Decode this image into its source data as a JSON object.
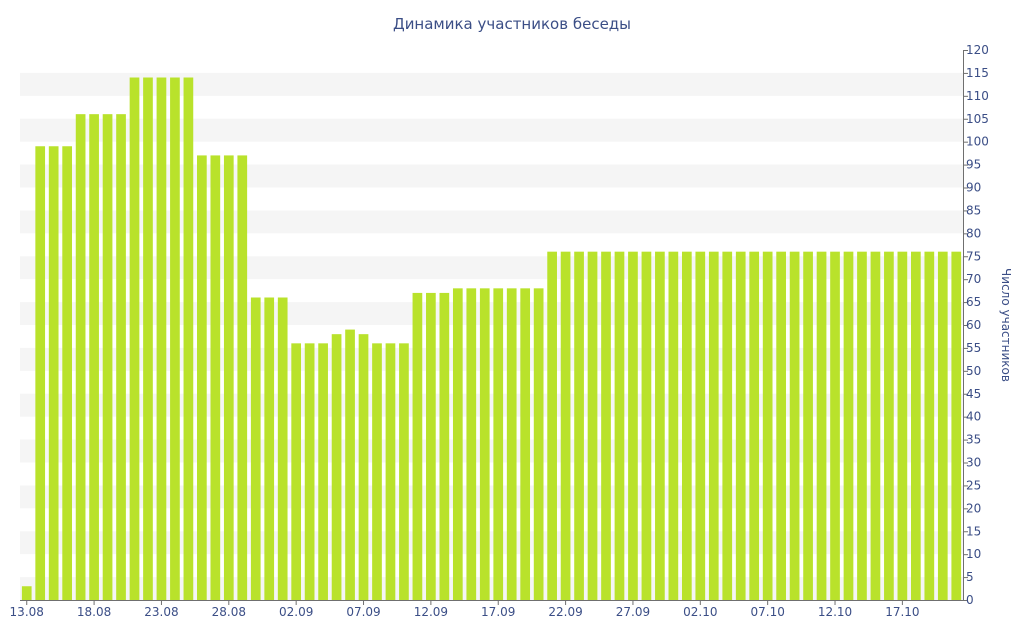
{
  "chart_data": {
    "type": "bar",
    "title": "Динамика участников беседы",
    "xlabel": "",
    "ylabel": "Число участников",
    "ylim": [
      0,
      120
    ],
    "y_ticks": [
      0,
      5,
      10,
      15,
      20,
      25,
      30,
      35,
      40,
      45,
      50,
      55,
      60,
      65,
      70,
      75,
      80,
      85,
      90,
      95,
      100,
      105,
      110,
      115,
      120
    ],
    "x_tick_labels": [
      "13.08",
      "18.08",
      "23.08",
      "28.08",
      "02.09",
      "07.09",
      "12.09",
      "17.09",
      "22.09",
      "27.09",
      "02.10",
      "07.10",
      "12.10",
      "17.10"
    ],
    "categories": [
      "13.08",
      "14.08",
      "15.08",
      "16.08",
      "17.08",
      "18.08",
      "19.08",
      "20.08",
      "21.08",
      "22.08",
      "23.08",
      "24.08",
      "25.08",
      "26.08",
      "27.08",
      "28.08",
      "29.08",
      "30.08",
      "31.08",
      "01.09",
      "02.09",
      "03.09",
      "04.09",
      "05.09",
      "06.09",
      "07.09",
      "08.09",
      "09.09",
      "10.09",
      "11.09",
      "12.09",
      "13.09",
      "14.09",
      "15.09",
      "16.09",
      "17.09",
      "18.09",
      "19.09",
      "20.09",
      "21.09",
      "22.09",
      "23.09",
      "24.09",
      "25.09",
      "26.09",
      "27.09",
      "28.09",
      "29.09",
      "30.09",
      "01.10",
      "02.10",
      "03.10",
      "04.10",
      "05.10",
      "06.10",
      "07.10",
      "08.10",
      "09.10",
      "10.10",
      "11.10",
      "12.10",
      "13.10",
      "14.10",
      "15.10",
      "16.10",
      "17.10",
      "18.10",
      "19.10",
      "20.10",
      "21.10"
    ],
    "values": [
      3,
      99,
      99,
      99,
      106,
      106,
      106,
      106,
      114,
      114,
      114,
      114,
      114,
      97,
      97,
      97,
      97,
      66,
      66,
      66,
      56,
      56,
      56,
      58,
      59,
      58,
      56,
      56,
      56,
      67,
      67,
      67,
      68,
      68,
      68,
      68,
      68,
      68,
      68,
      76,
      76,
      76,
      76,
      76,
      76,
      76,
      76,
      76,
      76,
      76,
      76,
      76,
      76,
      76,
      76,
      76,
      76,
      76,
      76,
      76,
      76,
      76,
      76,
      76,
      76,
      76,
      76,
      76,
      76,
      76
    ],
    "grid": "horizontal bands",
    "y_axis_position": "right",
    "bar_color": "#b9e22b",
    "text_color": "#3b4e86"
  }
}
